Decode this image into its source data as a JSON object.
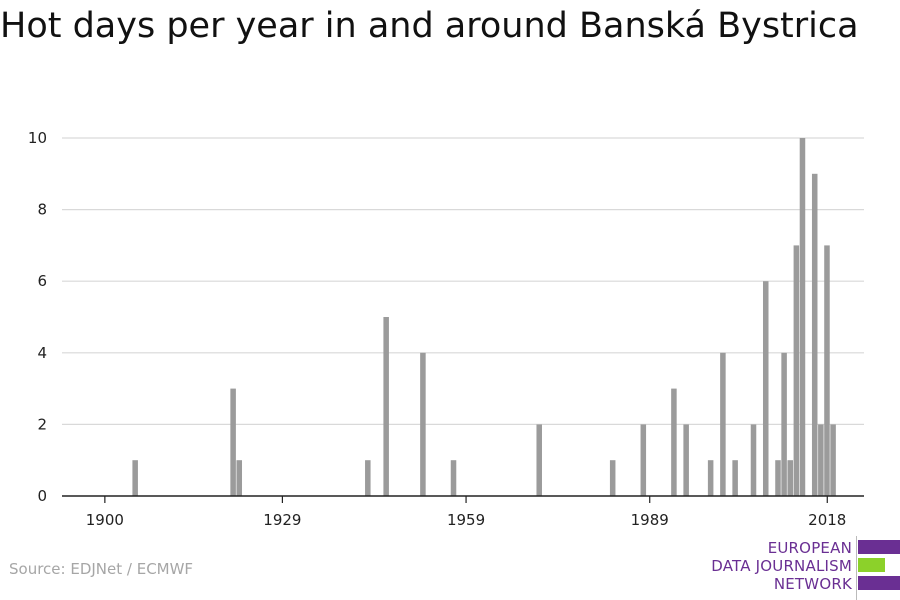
{
  "title": "Hot days per year in and around Banská Bystrica",
  "source": "Source: EDJNet / ECMWF",
  "logo": {
    "lines": [
      "EUROPEAN",
      "DATA JOURNALISM",
      "NETWORK"
    ],
    "colors": {
      "purple": "#6a2f93",
      "green": "#8cd12a"
    }
  },
  "chart_data": {
    "type": "bar",
    "title": "Hot days per year in and around Banská Bystrica",
    "xlabel": "",
    "ylabel": "",
    "xlim": [
      1893,
      2024
    ],
    "ylim": [
      0,
      10
    ],
    "x_ticks": [
      1900,
      1929,
      1959,
      1989,
      2018
    ],
    "y_ticks": [
      0,
      2,
      4,
      6,
      8,
      10
    ],
    "grid": true,
    "bar_color": "#9b9b9b",
    "points": [
      {
        "x": 1905,
        "y": 1
      },
      {
        "x": 1921,
        "y": 3
      },
      {
        "x": 1922,
        "y": 1
      },
      {
        "x": 1943,
        "y": 1
      },
      {
        "x": 1946,
        "y": 5
      },
      {
        "x": 1952,
        "y": 4
      },
      {
        "x": 1957,
        "y": 1
      },
      {
        "x": 1971,
        "y": 2
      },
      {
        "x": 1983,
        "y": 1
      },
      {
        "x": 1988,
        "y": 2
      },
      {
        "x": 1993,
        "y": 3
      },
      {
        "x": 1995,
        "y": 2
      },
      {
        "x": 1999,
        "y": 1
      },
      {
        "x": 2001,
        "y": 4
      },
      {
        "x": 2003,
        "y": 1
      },
      {
        "x": 2006,
        "y": 2
      },
      {
        "x": 2008,
        "y": 6
      },
      {
        "x": 2010,
        "y": 1
      },
      {
        "x": 2011,
        "y": 4
      },
      {
        "x": 2012,
        "y": 1
      },
      {
        "x": 2013,
        "y": 7
      },
      {
        "x": 2014,
        "y": 10
      },
      {
        "x": 2016,
        "y": 9
      },
      {
        "x": 2017,
        "y": 2
      },
      {
        "x": 2018,
        "y": 7
      },
      {
        "x": 2019,
        "y": 2
      }
    ]
  }
}
